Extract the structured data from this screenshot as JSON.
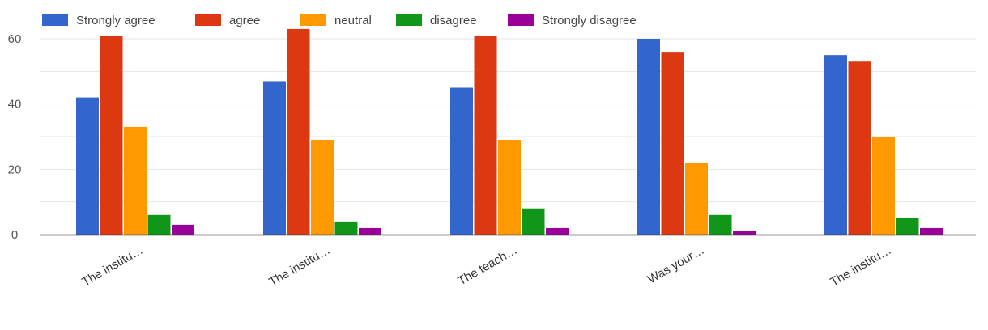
{
  "chart_data": {
    "type": "bar",
    "categories": [
      "The institu…",
      "The institu…",
      "The teach…",
      "Was your…",
      "The institu…"
    ],
    "series": [
      {
        "name": "Strongly agree",
        "color": "#3366cc",
        "values": [
          42,
          47,
          45,
          60,
          55
        ]
      },
      {
        "name": "agree",
        "color": "#dc3912",
        "values": [
          61,
          63,
          61,
          56,
          53
        ]
      },
      {
        "name": "neutral",
        "color": "#ff9900",
        "values": [
          33,
          29,
          29,
          22,
          30
        ]
      },
      {
        "name": "disagree",
        "color": "#109618",
        "values": [
          6,
          4,
          8,
          6,
          5
        ]
      },
      {
        "name": "Strongly disagree",
        "color": "#990099",
        "values": [
          3,
          2,
          2,
          1,
          2
        ]
      }
    ],
    "yticks": [
      0,
      20,
      40,
      60
    ],
    "ylim": [
      0,
      63
    ],
    "grid": true,
    "legend_position": "top-left",
    "title": "",
    "xlabel": "",
    "ylabel": ""
  }
}
